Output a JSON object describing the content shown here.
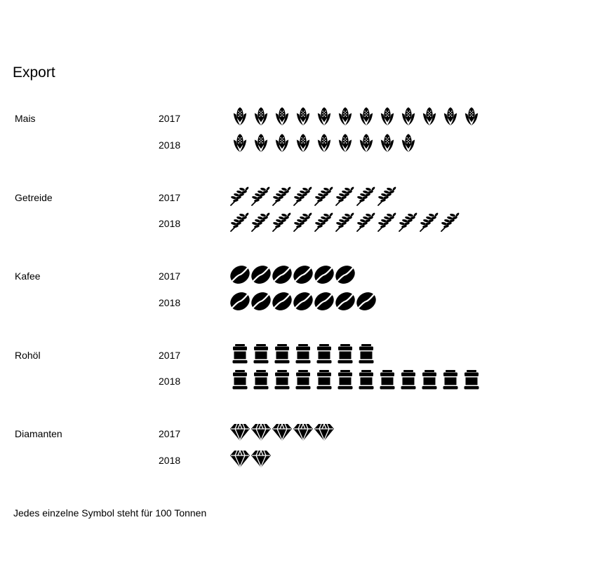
{
  "title": "Export",
  "footnote": "Jedes einzelne Symbol steht für 100 Tonnen",
  "chart_data": {
    "type": "pictograph",
    "unit_per_icon": 100,
    "unit": "Tonnen",
    "categories": [
      {
        "name": "Mais",
        "icon": "corn-icon",
        "rows": [
          {
            "year": "2017",
            "count": 12
          },
          {
            "year": "2018",
            "count": 9
          }
        ]
      },
      {
        "name": "Getreide",
        "icon": "wheat-icon",
        "rows": [
          {
            "year": "2017",
            "count": 8
          },
          {
            "year": "2018",
            "count": 11
          }
        ]
      },
      {
        "name": "Kafee",
        "icon": "coffee-bean-icon",
        "rows": [
          {
            "year": "2017",
            "count": 6
          },
          {
            "year": "2018",
            "count": 7
          }
        ]
      },
      {
        "name": "Rohöl",
        "icon": "oil-barrel-icon",
        "rows": [
          {
            "year": "2017",
            "count": 7
          },
          {
            "year": "2018",
            "count": 12
          }
        ]
      },
      {
        "name": "Diamanten",
        "icon": "diamond-icon",
        "rows": [
          {
            "year": "2017",
            "count": 5
          },
          {
            "year": "2018",
            "count": 2
          }
        ]
      }
    ]
  }
}
